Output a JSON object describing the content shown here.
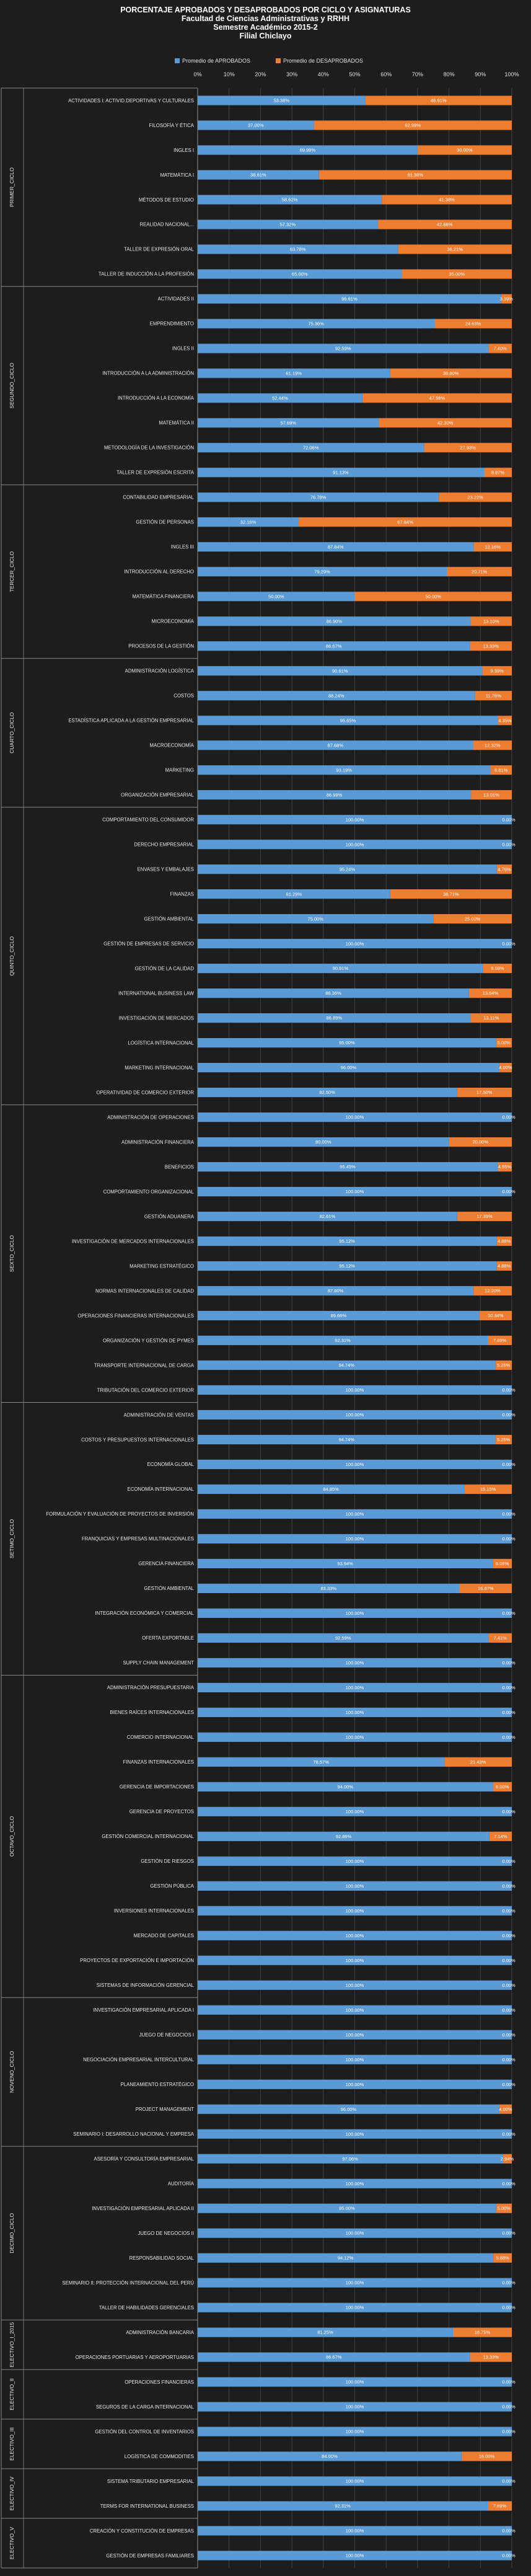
{
  "chart_data": {
    "type": "bar",
    "orientation": "horizontal-stacked-100",
    "title": [
      "PORCENTAJE  APROBADOS  Y DESAPROBADOS  POR CICLO  Y ASIGNATURAS",
      "Facultad de Ciencias Administrativas  y RRHH",
      "Semestre Académico  2015-2",
      "Filial  Chiclayo"
    ],
    "xlim": [
      0,
      100
    ],
    "xticks": [
      "0%",
      "10%",
      "20%",
      "30%",
      "40%",
      "50%",
      "60%",
      "70%",
      "80%",
      "90%",
      "100%"
    ],
    "grid": true,
    "legend_position": "top",
    "series": [
      {
        "name": "Promedio de APROBADOS",
        "color": "#5b9bd5"
      },
      {
        "name": "Promedio de DESAPROBADOS",
        "color": "#ed7d31"
      }
    ],
    "groups": [
      {
        "name": "PRIMER_CICLO",
        "rows": [
          {
            "label": "ACTIVIDADES I: ACTIVID.DEPORTIVAS Y CULTURALES",
            "a": "53.38%",
            "d": "46.61%"
          },
          {
            "label": "FILOSOFÍA Y ÉTICA",
            "a": "37.00%",
            "d": "62.99%"
          },
          {
            "label": "INGLES I",
            "a": "69.99%",
            "d": "30.00%"
          },
          {
            "label": "MATEMÁTICA I",
            "a": "38.61%",
            "d": "61.38%"
          },
          {
            "label": "MÉTODOS DE ESTUDIO",
            "a": "58.62%",
            "d": "41.38%"
          },
          {
            "label": "REALIDAD NACIONAL...",
            "a": "57.32%",
            "d": "42.66%"
          },
          {
            "label": "TALLER DE EXPRESIÓN ORAL",
            "a": "63.78%",
            "d": "36.21%"
          },
          {
            "label": "TALLER DE INDUCCIÓN A LA PROFESIÓN",
            "a": "65.00%",
            "d": "35.00%"
          }
        ]
      },
      {
        "name": "SEGUNDO_CICLO",
        "rows": [
          {
            "label": "ACTIVIDADES II",
            "a": "96.61%",
            "d": "3.39%"
          },
          {
            "label": "EMPRENDIMIENTO",
            "a": "75.36%",
            "d": "24.63%"
          },
          {
            "label": "INGLES II",
            "a": "92.59%",
            "d": "7.40%"
          },
          {
            "label": "INTRODUCCIÓN A LA ADMINISTRACIÓN",
            "a": "61.19%",
            "d": "38.80%"
          },
          {
            "label": "INTRODUCCIÓN A LA ECONOMÍA",
            "a": "52.44%",
            "d": "47.56%"
          },
          {
            "label": "MATEMÁTICA II",
            "a": "57.69%",
            "d": "42.30%"
          },
          {
            "label": "METODOLOGÍA  DE LA INVESTIGACIÓN",
            "a": "72.06%",
            "d": "27.93%"
          },
          {
            "label": "TALLER DE EXPRESIÓN ESCRITA",
            "a": "91.13%",
            "d": "8.87%"
          }
        ]
      },
      {
        "name": "TERCER_CICLO",
        "rows": [
          {
            "label": "CONTABILIDAD EMPRESARIAL",
            "a": "76.78%",
            "d": "23.22%"
          },
          {
            "label": "GESTIÓN DE PERSONAS",
            "a": "32.16%",
            "d": "67.84%"
          },
          {
            "label": "INGLES III",
            "a": "87.84%",
            "d": "12.16%"
          },
          {
            "label": "INTRODUCCIÓN AL DERECHO",
            "a": "79.29%",
            "d": "20.71%"
          },
          {
            "label": "MATEMÁTICA FINANCIERA",
            "a": "50.00%",
            "d": "50.00%"
          },
          {
            "label": "MICROECONOMÍA",
            "a": "86.90%",
            "d": "13.10%"
          },
          {
            "label": "PROCESOS DE LA GESTIÓN",
            "a": "86.67%",
            "d": "13.33%"
          }
        ]
      },
      {
        "name": "CUARTO_CICLO",
        "rows": [
          {
            "label": "ADMINISTRACIÓN LOGÍSTICA",
            "a": "90.61%",
            "d": "9.39%"
          },
          {
            "label": "COSTOS",
            "a": "88.24%",
            "d": "11.76%"
          },
          {
            "label": "ESTADÍSTICA APLICADA A LA GESTIÓN EMPRESARIAL",
            "a": "95.65%",
            "d": "4.35%"
          },
          {
            "label": "MACROECONOMÍA",
            "a": "87.68%",
            "d": "12.32%"
          },
          {
            "label": "MARKETING",
            "a": "93.19%",
            "d": "6.81%"
          },
          {
            "label": "ORGANIZACIÓN EMPRESARIAL",
            "a": "86.99%",
            "d": "13.01%"
          }
        ]
      },
      {
        "name": "QUINTO_CICLO",
        "rows": [
          {
            "label": "COMPORTAMIENTO DEL CONSUMIDOR",
            "a": "100.00%",
            "d": "0.00%"
          },
          {
            "label": "DERECHO EMPRESARIAL",
            "a": "100.00%",
            "d": "0.00%"
          },
          {
            "label": "ENVASES Y EMBALAJES",
            "a": "95.24%",
            "d": "4.76%"
          },
          {
            "label": "FINANZAS",
            "a": "61.29%",
            "d": "38.71%"
          },
          {
            "label": "GESTIÓN AMBIENTAL",
            "a": "75.00%",
            "d": "25.00%"
          },
          {
            "label": "GESTIÓN DE EMPRESAS DE SERVICIO",
            "a": "100.00%",
            "d": "0.00%"
          },
          {
            "label": "GESTIÓN DE LA CALIDAD",
            "a": "90.91%",
            "d": "9.09%"
          },
          {
            "label": "INTERNATIONAL BUSINESS LAW",
            "a": "86.36%",
            "d": "13.64%"
          },
          {
            "label": "INVESTIGACIÓN DE MERCADOS",
            "a": "86.89%",
            "d": "13.11%"
          },
          {
            "label": "LOGÍSTICA INTERNACIONAL",
            "a": "95.00%",
            "d": "5.00%"
          },
          {
            "label": "MARKETING INTERNACIONAL",
            "a": "96.00%",
            "d": "4.00%"
          },
          {
            "label": "OPERATIVIDAD DE COMERCIO EXTERIOR",
            "a": "82.50%",
            "d": "17.50%"
          }
        ]
      },
      {
        "name": "SEXTO_CICLO",
        "rows": [
          {
            "label": "ADMINISTRACIÓN DE OPERACIONES",
            "a": "100.00%",
            "d": "0.00%"
          },
          {
            "label": "ADMINISTRACIÓN FINANCIERA",
            "a": "80.00%",
            "d": "20.00%"
          },
          {
            "label": "BENEFICIOS",
            "a": "95.45%",
            "d": "4.55%"
          },
          {
            "label": "COMPORTAMIENTO ORGANIZACIONAL",
            "a": "100.00%",
            "d": "0.00%"
          },
          {
            "label": "GESTIÓN ADUANERA",
            "a": "82.61%",
            "d": "17.39%"
          },
          {
            "label": "INVESTIGACIÓN DE MERCADOS INTERNACIONALES",
            "a": "95.12%",
            "d": "4.88%"
          },
          {
            "label": "MARKETING ESTRATÉGICO",
            "a": "95.12%",
            "d": "4.88%"
          },
          {
            "label": "NORMAS INTERNACIONALES DE CALIDAD",
            "a": "87.80%",
            "d": "12.20%"
          },
          {
            "label": "OPERACIONES FINANCIERAS INTERNACIONALES",
            "a": "89.66%",
            "d": "10.34%"
          },
          {
            "label": "ORGANIZACIÓN Y GESTIÓN DE PYMES",
            "a": "92.31%",
            "d": "7.69%"
          },
          {
            "label": "TRANSPORTE INTERNACIONAL DE CARGA",
            "a": "94.74%",
            "d": "5.26%"
          },
          {
            "label": "TRIBUTACIÓN DEL COMERCIO EXTERIOR",
            "a": "100.00%",
            "d": "0.00%"
          }
        ]
      },
      {
        "name": "SETIMO_CICLO",
        "rows": [
          {
            "label": "ADMINISTRACIÓN DE VENTAS",
            "a": "100.00%",
            "d": "0.00%"
          },
          {
            "label": "COSTOS Y PRESUPUESTOS INTERNACIONALES",
            "a": "94.74%",
            "d": "5.26%"
          },
          {
            "label": "ECONOMÍA GLOBAL",
            "a": "100.00%",
            "d": "0.00%"
          },
          {
            "label": "ECONOMÍA INTERNACIONAL",
            "a": "84.85%",
            "d": "15.15%"
          },
          {
            "label": "FORMULACIÓN Y EVALUACIÓN DE PROYECTOS DE INVERSIÓN",
            "a": "100.00%",
            "d": "0.00%"
          },
          {
            "label": "FRANQUICIAS Y EMPRESAS MULTINACIONALES",
            "a": "100.00%",
            "d": "0.00%"
          },
          {
            "label": "GERENCIA FINANCIERA",
            "a": "93.94%",
            "d": "6.06%"
          },
          {
            "label": "GESTIÓN AMBIENTAL",
            "a": "83.33%",
            "d": "16.67%"
          },
          {
            "label": "INTEGRACIÓN ECONÓMICA Y COMERCIAL",
            "a": "100.00%",
            "d": "0.00%"
          },
          {
            "label": "OFERTA EXPORTABLE",
            "a": "92.59%",
            "d": "7.41%"
          },
          {
            "label": "SUPPLY CHAIN MANAGEMENT",
            "a": "100.00%",
            "d": "0.00%"
          }
        ]
      },
      {
        "name": "OCTAVO_CICLO",
        "rows": [
          {
            "label": "ADMINISTRACIÓN PRESUPUESTARIA",
            "a": "100.00%",
            "d": "0.00%"
          },
          {
            "label": "BIENES RAÍCES INTERNACIONALES",
            "a": "100.00%",
            "d": "0.00%"
          },
          {
            "label": "COMERCIO INTERNACIONAL",
            "a": "100.00%",
            "d": "0.00%"
          },
          {
            "label": "FINANZAS INTERNACIONALES",
            "a": "78.57%",
            "d": "21.43%"
          },
          {
            "label": "GERENCIA DE IMPORTACIONES",
            "a": "94.00%",
            "d": "6.00%"
          },
          {
            "label": "GERENCIA DE PROYECTOS",
            "a": "100.00%",
            "d": "0.00%"
          },
          {
            "label": "GESTIÓN COMERCIAL INTERNACIONAL",
            "a": "92.86%",
            "d": "7.14%"
          },
          {
            "label": "GESTIÓN DE RIESGOS",
            "a": "100.00%",
            "d": "0.00%"
          },
          {
            "label": "GESTIÓN PÚBLICA",
            "a": "100.00%",
            "d": "0.00%"
          },
          {
            "label": "INVERSIONES INTERNACIONALES",
            "a": "100.00%",
            "d": "0.00%"
          },
          {
            "label": "MERCADO DE CAPITALES",
            "a": "100.00%",
            "d": "0.00%"
          },
          {
            "label": "PROYECTOS DE EXPORTACIÓN E IMPORTACIÓN",
            "a": "100.00%",
            "d": "0.00%"
          },
          {
            "label": "SISTEMAS DE INFORMACIÓN GERENCIAL",
            "a": "100.00%",
            "d": "0.00%"
          }
        ]
      },
      {
        "name": "NOVENO_CICLO",
        "rows": [
          {
            "label": "INVESTIGACIÓN EMPRESARIAL APLICADA I",
            "a": "100.00%",
            "d": "0.00%"
          },
          {
            "label": "JUEGO DE NEGOCIOS I",
            "a": "100.00%",
            "d": "0.00%"
          },
          {
            "label": "NEGOCIACIÓN EMPRESARIAL INTERCULTURAL",
            "a": "100.00%",
            "d": "0.00%"
          },
          {
            "label": "PLANEAMIENTO ESTRATÉGICO",
            "a": "100.00%",
            "d": "0.00%"
          },
          {
            "label": "PROJECT MANAGEMENT",
            "a": "96.00%",
            "d": "4.00%"
          },
          {
            "label": "SEMINARIO I: DESARROLLO NACIONAL Y EMPRESA",
            "a": "100.00%",
            "d": "0.00%"
          }
        ]
      },
      {
        "name": "DECIMO_CICLO",
        "rows": [
          {
            "label": "ASESORÍA Y CONSULTORÍA EMPRESARIAL",
            "a": "97.06%",
            "d": "2.94%"
          },
          {
            "label": "AUDITORÍA",
            "a": "100.00%",
            "d": "0.00%"
          },
          {
            "label": "INVESTIGACIÓN EMPRESARIAL APLICADA II",
            "a": "95.00%",
            "d": "5.00%"
          },
          {
            "label": "JUEGO DE NEGOCIOS II",
            "a": "100.00%",
            "d": "0.00%"
          },
          {
            "label": "RESPONSABILIDAD SOCIAL",
            "a": "94.12%",
            "d": "5.88%"
          },
          {
            "label": "SEMINARIO II: PROTECCIÓN INTERNACIONAL DEL PERÚ",
            "a": "100.00%",
            "d": "0.00%"
          },
          {
            "label": "TALLER DE HABILIDADES GERENCIALES",
            "a": "100.00%",
            "d": "0.00%"
          }
        ]
      },
      {
        "name": "ELECTIVO_I_2015",
        "rows": [
          {
            "label": "ADMINISTRACIÓN BANCARIA",
            "a": "81.25%",
            "d": "18.75%"
          },
          {
            "label": "OPERACIONES PORTUARIAS Y AEROPORTUARIAS",
            "a": "86.67%",
            "d": "13.33%"
          }
        ]
      },
      {
        "name": "ELECTIVO_II",
        "rows": [
          {
            "label": "OPERACIONES FINANCIERAS",
            "a": "100.00%",
            "d": "0.00%"
          },
          {
            "label": "SEGUROS DE LA CARGA INTERNACIONAL",
            "a": "100.00%",
            "d": "0.00%"
          }
        ]
      },
      {
        "name": "ELECTIVO_III",
        "rows": [
          {
            "label": "GESTIÓN DEL CONTROL DE INVENTARIOS",
            "a": "100.00%",
            "d": "0.00%"
          },
          {
            "label": "LOGÍSTICA DE COMMODITIES",
            "a": "84.00%",
            "d": "16.00%"
          }
        ]
      },
      {
        "name": "ELECTIVO_IV",
        "rows": [
          {
            "label": "SISTEMA TRIBUTARIO EMPRESARIAL",
            "a": "100.00%",
            "d": "0.00%"
          },
          {
            "label": "TERMS FOR INTERNATIONAL BUSINESS",
            "a": "92.31%",
            "d": "7.69%"
          }
        ]
      },
      {
        "name": "ELECTIVO_V",
        "rows": [
          {
            "label": "CREACIÓN Y CONSTITUCIÓN DE EMPRESAS",
            "a": "100.00%",
            "d": "0.00%"
          },
          {
            "label": "GESTIÓN DE EMPRESAS FAMILIARES",
            "a": "100.00%",
            "d": "0.00%"
          }
        ]
      }
    ]
  }
}
